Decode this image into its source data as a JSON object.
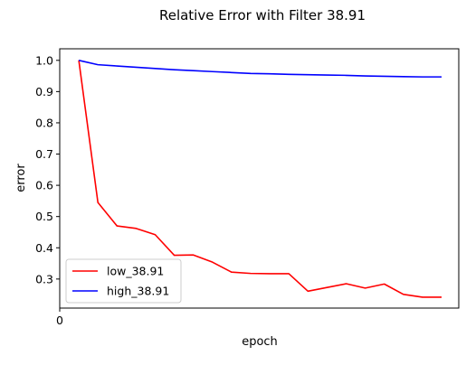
{
  "chart_data": {
    "type": "line",
    "title": "Relative Error with Filter 38.91",
    "xlabel": "epoch",
    "ylabel": "error",
    "x": [
      1,
      2,
      3,
      4,
      5,
      6,
      7,
      8,
      9,
      10,
      11,
      12,
      13,
      14,
      15,
      16,
      17,
      18,
      19,
      20
    ],
    "xlim": [
      0,
      20.9
    ],
    "x_ticks": [
      "0"
    ],
    "ylim": [
      0.207,
      1.037
    ],
    "y_ticks": [
      "0.3",
      "0.4",
      "0.5",
      "0.6",
      "0.7",
      "0.8",
      "0.9",
      "1.0"
    ],
    "grid": false,
    "legend_position": "lower left",
    "series": [
      {
        "name": "low_38.91",
        "color": "#ff0000",
        "values": [
          1.0,
          0.545,
          0.47,
          0.462,
          0.442,
          0.376,
          0.377,
          0.354,
          0.322,
          0.318,
          0.317,
          0.317,
          0.261,
          0.273,
          0.285,
          0.271,
          0.284,
          0.251,
          0.242,
          0.242
        ]
      },
      {
        "name": "high_38.91",
        "color": "#0000ff",
        "values": [
          1.0,
          0.986,
          0.982,
          0.978,
          0.974,
          0.97,
          0.967,
          0.964,
          0.961,
          0.958,
          0.957,
          0.955,
          0.954,
          0.953,
          0.952,
          0.95,
          0.949,
          0.948,
          0.947,
          0.947
        ]
      }
    ]
  }
}
